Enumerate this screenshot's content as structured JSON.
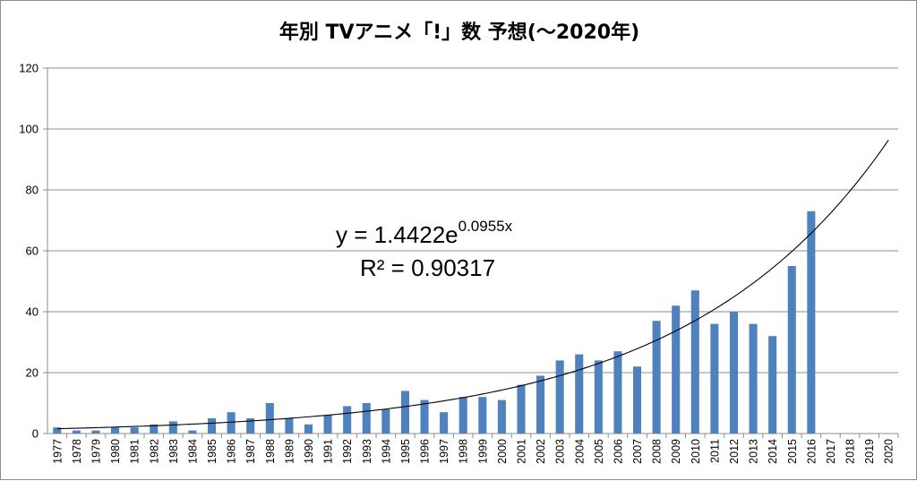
{
  "chart_data": {
    "type": "bar",
    "title": "年別 TVアニメ「!」数 予想(〜2020年)",
    "ylim": [
      0,
      120
    ],
    "yticks": [
      0,
      20,
      40,
      60,
      80,
      100,
      120
    ],
    "ytick_labels": [
      "0",
      "20",
      "40",
      "60",
      "80",
      "100",
      "120"
    ],
    "grid": true,
    "categories": [
      "1977",
      "1978",
      "1979",
      "1980",
      "1981",
      "1982",
      "1983",
      "1984",
      "1985",
      "1986",
      "1987",
      "1988",
      "1989",
      "1990",
      "1991",
      "1992",
      "1993",
      "1994",
      "1995",
      "1996",
      "1997",
      "1998",
      "1999",
      "2000",
      "2001",
      "2002",
      "2003",
      "2004",
      "2005",
      "2006",
      "2007",
      "2008",
      "2009",
      "2010",
      "2011",
      "2012",
      "2013",
      "2014",
      "2015",
      "2016",
      "2017",
      "2018",
      "2019",
      "2020"
    ],
    "values": [
      2,
      1,
      1,
      2,
      2,
      3,
      4,
      1,
      5,
      7,
      5,
      10,
      5,
      3,
      6,
      9,
      10,
      8,
      14,
      11,
      7,
      12,
      12,
      11,
      16,
      19,
      24,
      26,
      24,
      27,
      22,
      37,
      42,
      47,
      36,
      40,
      36,
      32,
      55,
      73,
      null,
      null,
      null,
      null
    ],
    "bar_color": "#4f81bd",
    "trendline": {
      "type": "exponential",
      "a": 1.4422,
      "b": 0.0955,
      "equation_main": "y = 1.4422e",
      "equation_exponent": "0.0955x",
      "r_squared_label": "R² = 0.90317"
    }
  }
}
